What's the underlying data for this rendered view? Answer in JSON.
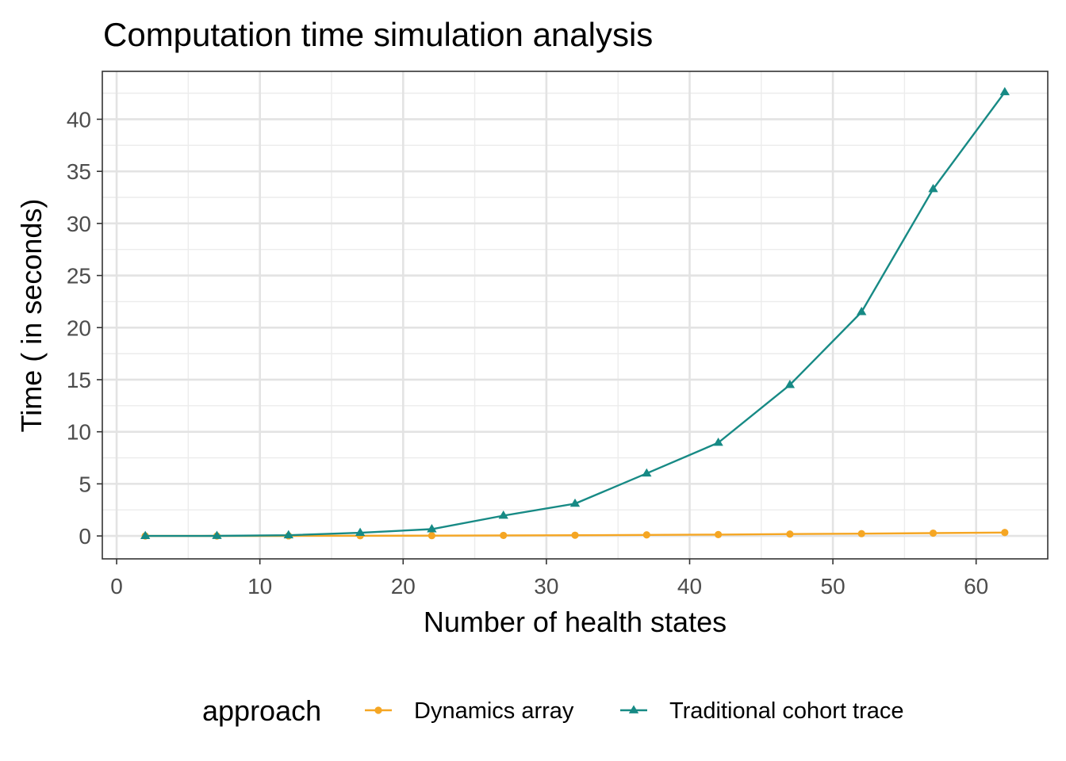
{
  "chart_data": {
    "type": "line",
    "title": "Computation time simulation analysis",
    "xlabel": "Number of health states",
    "ylabel": "Time ( in seconds)",
    "xlim": [
      -1,
      65
    ],
    "ylim": [
      -2.2,
      44.6
    ],
    "x_ticks": [
      0,
      10,
      20,
      30,
      40,
      50,
      60
    ],
    "y_ticks": [
      0,
      5,
      10,
      15,
      20,
      25,
      30,
      35,
      40
    ],
    "grid": true,
    "legend_title": "approach",
    "legend_position": "bottom",
    "series": [
      {
        "name": "Dynamics array",
        "color": "#f5a623",
        "marker": "circle",
        "x": [
          2,
          7,
          12,
          17,
          22,
          27,
          32,
          37,
          42,
          47,
          52,
          57,
          62
        ],
        "values": [
          0.0,
          0.0,
          0.01,
          0.02,
          0.03,
          0.05,
          0.07,
          0.1,
          0.13,
          0.18,
          0.22,
          0.27,
          0.33
        ]
      },
      {
        "name": "Traditional cohort trace",
        "color": "#178a85",
        "marker": "triangle",
        "x": [
          2,
          7,
          12,
          17,
          22,
          27,
          32,
          37,
          42,
          47,
          52,
          57,
          62
        ],
        "values": [
          0.0,
          0.01,
          0.07,
          0.3,
          0.65,
          1.95,
          3.1,
          6.0,
          8.95,
          14.5,
          21.5,
          33.3,
          42.6
        ]
      }
    ]
  }
}
